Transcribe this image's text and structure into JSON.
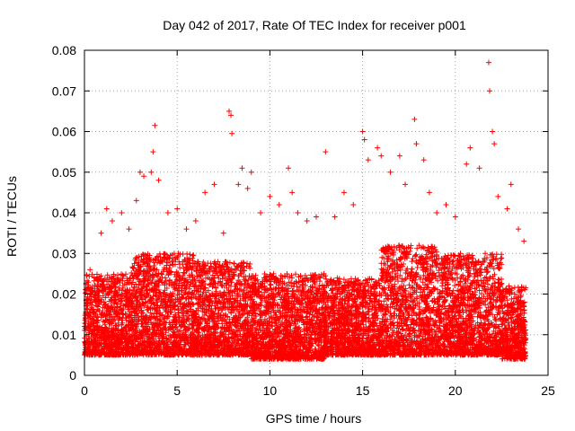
{
  "chart_data": {
    "type": "scatter",
    "title": "Day 042 of 2017, Rate Of TEC Index for receiver p001",
    "xlabel": "GPS time / hours",
    "ylabel": "ROTI / TECUs",
    "xlim": [
      0,
      25
    ],
    "ylim": [
      0,
      0.08
    ],
    "xticks": [
      0,
      5,
      10,
      15,
      20,
      25
    ],
    "xtick_labels": [
      "0",
      "5",
      "10",
      "15",
      "20",
      "25"
    ],
    "yticks": [
      0,
      0.01,
      0.02,
      0.03,
      0.04,
      0.05,
      0.06,
      0.07,
      0.08
    ],
    "ytick_labels": [
      "0",
      "0.01",
      "0.02",
      "0.03",
      "0.04",
      "0.05",
      "0.06",
      "0.07",
      "0.08"
    ],
    "grid": true,
    "marker": "plus",
    "color": "#ff0000",
    "x_range_of_data": [
      0,
      23.8
    ],
    "points": [
      [
        0.3,
        0.026
      ],
      [
        0.9,
        0.035
      ],
      [
        1.2,
        0.041
      ],
      [
        1.5,
        0.038
      ],
      [
        2.0,
        0.04
      ],
      [
        2.4,
        0.036
      ],
      [
        2.8,
        0.043
      ],
      [
        3.0,
        0.05
      ],
      [
        3.2,
        0.049
      ],
      [
        3.6,
        0.05
      ],
      [
        3.7,
        0.055
      ],
      [
        3.8,
        0.0615
      ],
      [
        4.0,
        0.048
      ],
      [
        4.5,
        0.04
      ],
      [
        5.0,
        0.041
      ],
      [
        5.5,
        0.036
      ],
      [
        6.0,
        0.038
      ],
      [
        6.5,
        0.045
      ],
      [
        7.0,
        0.047
      ],
      [
        7.5,
        0.035
      ],
      [
        7.8,
        0.065
      ],
      [
        7.9,
        0.064
      ],
      [
        7.95,
        0.0595
      ],
      [
        8.3,
        0.047
      ],
      [
        8.5,
        0.051
      ],
      [
        8.8,
        0.046
      ],
      [
        9.0,
        0.05
      ],
      [
        9.5,
        0.04
      ],
      [
        10.0,
        0.044
      ],
      [
        10.5,
        0.042
      ],
      [
        11.0,
        0.051
      ],
      [
        11.2,
        0.045
      ],
      [
        11.5,
        0.04
      ],
      [
        12.0,
        0.038
      ],
      [
        12.5,
        0.039
      ],
      [
        13.0,
        0.055
      ],
      [
        13.5,
        0.039
      ],
      [
        14.0,
        0.045
      ],
      [
        14.5,
        0.042
      ],
      [
        15.0,
        0.06
      ],
      [
        15.1,
        0.058
      ],
      [
        15.3,
        0.053
      ],
      [
        15.8,
        0.056
      ],
      [
        16.0,
        0.054
      ],
      [
        16.5,
        0.05
      ],
      [
        17.0,
        0.054
      ],
      [
        17.3,
        0.047
      ],
      [
        17.8,
        0.063
      ],
      [
        17.9,
        0.057
      ],
      [
        18.3,
        0.053
      ],
      [
        18.6,
        0.045
      ],
      [
        19.0,
        0.04
      ],
      [
        19.5,
        0.042
      ],
      [
        20.0,
        0.039
      ],
      [
        20.6,
        0.052
      ],
      [
        20.8,
        0.056
      ],
      [
        21.3,
        0.051
      ],
      [
        21.8,
        0.077
      ],
      [
        21.85,
        0.07
      ],
      [
        22.0,
        0.06
      ],
      [
        22.1,
        0.057
      ],
      [
        22.3,
        0.044
      ],
      [
        22.8,
        0.041
      ],
      [
        23.0,
        0.047
      ],
      [
        23.4,
        0.036
      ],
      [
        23.7,
        0.033
      ],
      [
        0.2,
        0.012
      ],
      [
        0.6,
        0.018
      ],
      [
        1.0,
        0.022
      ],
      [
        1.8,
        0.015
      ],
      [
        2.6,
        0.02
      ],
      [
        3.4,
        0.017
      ],
      [
        4.2,
        0.024
      ],
      [
        5.2,
        0.013
      ],
      [
        6.2,
        0.019
      ],
      [
        7.2,
        0.014
      ],
      [
        8.6,
        0.021
      ],
      [
        9.6,
        0.011
      ],
      [
        10.8,
        0.016
      ],
      [
        11.8,
        0.023
      ],
      [
        12.8,
        0.012
      ],
      [
        13.8,
        0.018
      ],
      [
        14.8,
        0.01
      ],
      [
        15.6,
        0.022
      ],
      [
        16.8,
        0.025
      ],
      [
        17.6,
        0.019
      ],
      [
        18.8,
        0.016
      ],
      [
        19.8,
        0.013
      ],
      [
        20.4,
        0.021
      ],
      [
        21.0,
        0.017
      ],
      [
        21.6,
        0.026
      ],
      [
        22.6,
        0.014
      ],
      [
        23.2,
        0.02
      ],
      [
        23.8,
        0.009
      ]
    ],
    "dense_band": [
      {
        "x": [
          0.0,
          2.5
        ],
        "y": [
          0.005,
          0.025
        ]
      },
      {
        "x": [
          2.5,
          6.0
        ],
        "y": [
          0.005,
          0.03
        ]
      },
      {
        "x": [
          6.0,
          9.0
        ],
        "y": [
          0.005,
          0.028
        ]
      },
      {
        "x": [
          9.0,
          13.0
        ],
        "y": [
          0.004,
          0.025
        ]
      },
      {
        "x": [
          13.0,
          16.0
        ],
        "y": [
          0.005,
          0.024
        ]
      },
      {
        "x": [
          16.0,
          19.0
        ],
        "y": [
          0.005,
          0.032
        ]
      },
      {
        "x": [
          19.0,
          22.5
        ],
        "y": [
          0.005,
          0.03
        ]
      },
      {
        "x": [
          22.5,
          23.8
        ],
        "y": [
          0.004,
          0.022
        ]
      }
    ]
  }
}
